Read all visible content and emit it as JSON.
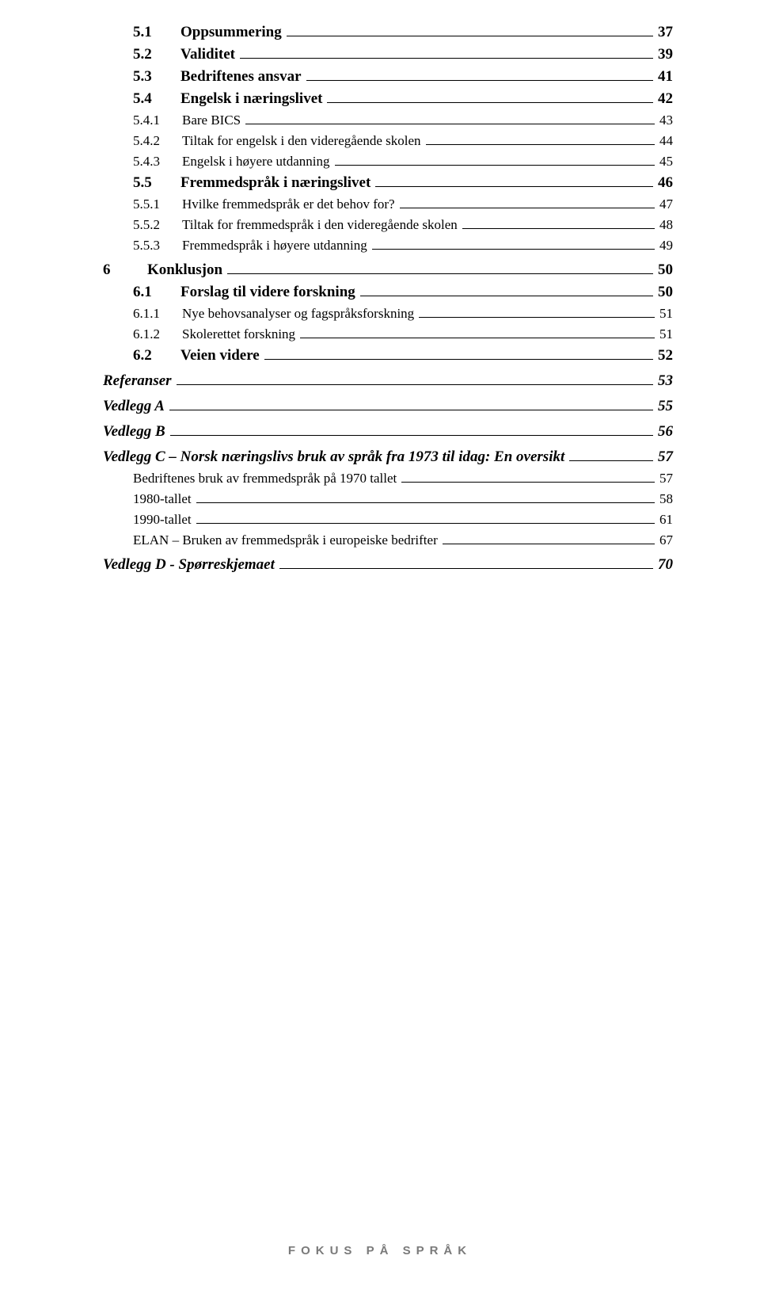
{
  "entries": [
    {
      "cls": "lvl2",
      "num": "5.1",
      "label": "Oppsummering",
      "page": "37"
    },
    {
      "cls": "lvl2",
      "num": "5.2",
      "label": "Validitet",
      "page": "39"
    },
    {
      "cls": "lvl2",
      "num": "5.3",
      "label": "Bedriftenes ansvar",
      "page": "41"
    },
    {
      "cls": "lvl2",
      "num": "5.4",
      "label": "Engelsk i næringslivet",
      "page": "42"
    },
    {
      "cls": "lvl3",
      "num": "5.4.1",
      "label": "Bare BICS",
      "page": "43"
    },
    {
      "cls": "lvl3",
      "num": "5.4.2",
      "label": "Tiltak for engelsk i den videregående skolen",
      "page": "44"
    },
    {
      "cls": "lvl3",
      "num": "5.4.3",
      "label": "Engelsk i høyere utdanning",
      "page": "45"
    },
    {
      "cls": "lvl2",
      "num": "5.5",
      "label": "Fremmedspråk i næringslivet",
      "page": "46"
    },
    {
      "cls": "lvl3",
      "num": "5.5.1",
      "label": "Hvilke fremmedspråk er det behov for?",
      "page": "47"
    },
    {
      "cls": "lvl3",
      "num": "5.5.2",
      "label": "Tiltak for fremmedspråk i den videregående skolen",
      "page": "48"
    },
    {
      "cls": "lvl3",
      "num": "5.5.3",
      "label": "Fremmedspråk i høyere utdanning",
      "page": "49"
    },
    {
      "cls": "lvl1",
      "num": "6",
      "label": "Konklusjon",
      "page": "50",
      "gapBefore": "gap-s"
    },
    {
      "cls": "lvl2",
      "num": "6.1",
      "label": "Forslag til videre forskning",
      "page": "50"
    },
    {
      "cls": "lvl3",
      "num": "6.1.1",
      "label": "Nye behovsanalyser og fagspråksforskning",
      "page": "51"
    },
    {
      "cls": "lvl3",
      "num": "6.1.2",
      "label": "Skolerettet forskning",
      "page": "51"
    },
    {
      "cls": "lvl2",
      "num": "6.2",
      "label": "Veien videre",
      "page": "52"
    },
    {
      "cls": "lvl1-ital",
      "num": "",
      "label": "Referanser",
      "page": "53",
      "gapBefore": "gap-s"
    },
    {
      "cls": "lvl1-ital",
      "num": "",
      "label": "Vedlegg A",
      "page": "55",
      "gapBefore": "gap-s"
    },
    {
      "cls": "lvl1-ital",
      "num": "",
      "label": "Vedlegg B",
      "page": "56",
      "gapBefore": "gap-s"
    },
    {
      "cls": "lvl1-ital-long",
      "num": "",
      "label": "Vedlegg C – Norsk næringslivs bruk av språk fra 1973 til idag: En oversikt",
      "page": "57",
      "gapBefore": "gap-s"
    },
    {
      "cls": "lvl3-noind",
      "num": "",
      "label": "Bedriftenes bruk av fremmedspråk på 1970 tallet",
      "page": "57"
    },
    {
      "cls": "lvl3-noind",
      "num": "",
      "label": "1980-tallet",
      "page": "58"
    },
    {
      "cls": "lvl3-noind",
      "num": "",
      "label": "1990-tallet",
      "page": "61"
    },
    {
      "cls": "lvl3-noind",
      "num": "",
      "label": "ELAN – Bruken av fremmedspråk i europeiske bedrifter",
      "page": "67"
    },
    {
      "cls": "lvl1-ital",
      "num": "",
      "label": "Vedlegg D - Spørreskjemaet",
      "page": "70",
      "gapBefore": "gap-s"
    }
  ],
  "footer": "FOKUS PÅ SPRÅK"
}
